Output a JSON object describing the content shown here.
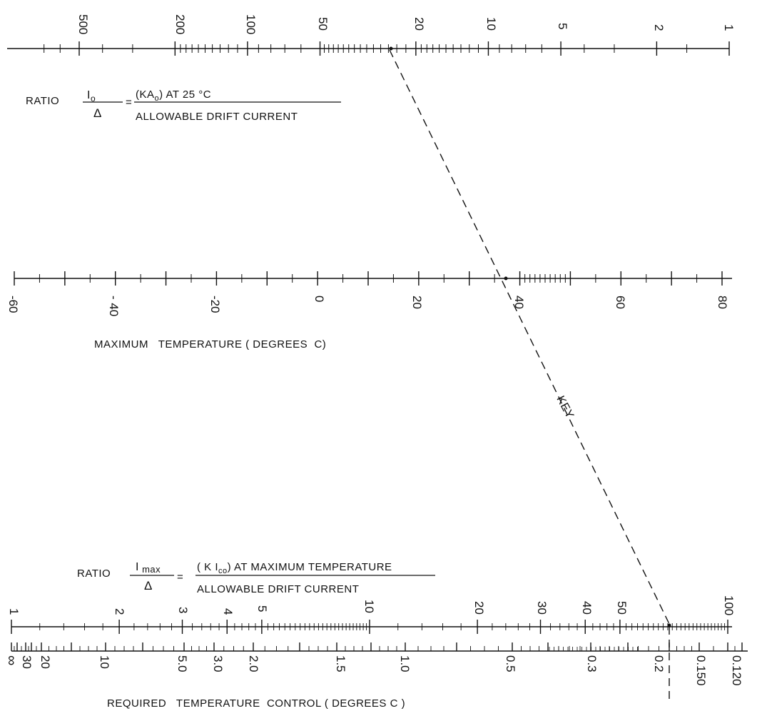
{
  "top_scale": {
    "ticks": [
      "500",
      "200",
      "100",
      "50",
      "20",
      "10",
      "5",
      "2",
      "1"
    ]
  },
  "ratio_io": {
    "prefix": "RATIO",
    "numerator": "Io",
    "denominator": "Δ",
    "equals": "=",
    "right_numerator": "(KAo) AT 25 °C",
    "right_denominator": "ALLOWABLE DRIFT CURRENT"
  },
  "mid_scale": {
    "ticks": [
      "-60",
      "- 40",
      "-20",
      "0",
      "20",
      "40",
      "60",
      "80"
    ],
    "label": "MAXIMUM   TEMPERATURE ( DEGREES  C)"
  },
  "key_label": "KEY",
  "ratio_imax": {
    "prefix": "RATIO",
    "numerator": "Imax",
    "denominator": "Δ",
    "equals": "=",
    "right_numerator": "( K Ico) AT MAXIMUM TEMPERATURE",
    "right_denominator": "ALLOWABLE DRIFT CURRENT"
  },
  "ratio_scale": {
    "ticks": [
      "1",
      "2",
      "3",
      "4",
      "5",
      "10",
      "20",
      "30",
      "40",
      "50",
      "100"
    ]
  },
  "control_scale": {
    "ticks": [
      "∞",
      "30",
      "20",
      "10",
      "5.0",
      "3.0",
      "2.0",
      "1.5",
      "1.0",
      "0.5",
      "0.3",
      "0.2",
      "0.150",
      "0.120"
    ],
    "label": "REQUIRED   TEMPERATURE  CONTROL ( DEGREES C )"
  },
  "example": {
    "top_value": 18,
    "temperature": 37,
    "ratio_value": 80
  }
}
